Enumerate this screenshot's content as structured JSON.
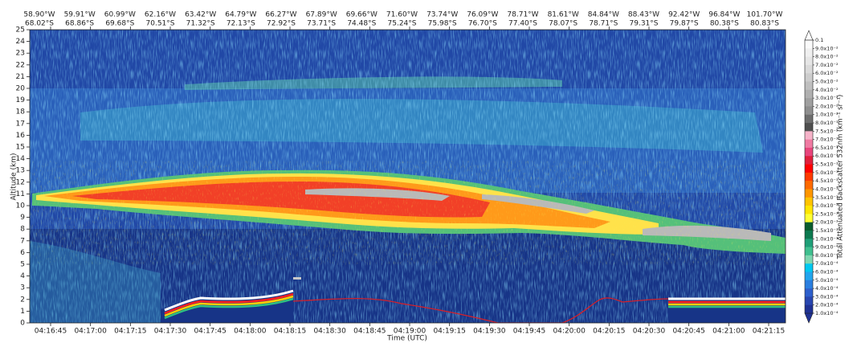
{
  "chart_data": {
    "type": "heatmap",
    "ylabel": "Altitude (km)",
    "xlabel": "Time (UTC)",
    "ylim": [
      0,
      25
    ],
    "yticks": [
      0,
      1,
      2,
      3,
      4,
      5,
      6,
      7,
      8,
      9,
      10,
      11,
      12,
      13,
      14,
      15,
      16,
      17,
      18,
      19,
      20,
      21,
      22,
      23,
      24,
      25
    ],
    "xticks": [
      "04:16:45",
      "04:17:00",
      "04:17:15",
      "04:17:30",
      "04:17:45",
      "04:18:00",
      "04:18:15",
      "04:18:30",
      "04:18:45",
      "04:19:00",
      "04:19:15",
      "04:19:30",
      "04:19:45",
      "04:20:00",
      "04:20:15",
      "04:20:30",
      "04:20:45",
      "04:21:00",
      "04:21:15"
    ],
    "top_labels": [
      {
        "lon": "58.90°W",
        "lat": "68.02°S"
      },
      {
        "lon": "59.91°W",
        "lat": "68.86°S"
      },
      {
        "lon": "60.99°W",
        "lat": "69.68°S"
      },
      {
        "lon": "62.16°W",
        "lat": "70.51°S"
      },
      {
        "lon": "63.42°W",
        "lat": "71.32°S"
      },
      {
        "lon": "64.79°W",
        "lat": "72.13°S"
      },
      {
        "lon": "66.27°W",
        "lat": "72.92°S"
      },
      {
        "lon": "67.89°W",
        "lat": "73.71°S"
      },
      {
        "lon": "69.66°W",
        "lat": "74.48°S"
      },
      {
        "lon": "71.60°W",
        "lat": "75.24°S"
      },
      {
        "lon": "73.74°W",
        "lat": "75.98°S"
      },
      {
        "lon": "76.09°W",
        "lat": "76.70°S"
      },
      {
        "lon": "78.71°W",
        "lat": "77.40°S"
      },
      {
        "lon": "81.61°W",
        "lat": "78.07°S"
      },
      {
        "lon": "84.84°W",
        "lat": "78.71°S"
      },
      {
        "lon": "88.43°W",
        "lat": "79.31°S"
      },
      {
        "lon": "92.42°W",
        "lat": "79.87°S"
      },
      {
        "lon": "96.84°W",
        "lat": "80.38°S"
      },
      {
        "lon": "101.70°W",
        "lat": "80.83°S"
      }
    ],
    "colorbar_label": "Total Attenuated Backscatter 532nm (km⁻¹ sr⁻¹)",
    "colorbar_ticks": [
      "0.1",
      "9.0x10⁻²",
      "8.0x10⁻²",
      "7.0x10⁻²",
      "6.0x10⁻²",
      "5.0x10⁻²",
      "4.0x10⁻²",
      "3.0x10⁻²",
      "2.0x10⁻²",
      "1.0x10⁻²",
      "8.0x10⁻³",
      "7.5x10⁻³",
      "7.0x10⁻³",
      "6.5x10⁻³",
      "6.0x10⁻³",
      "5.5x10⁻³",
      "5.0x10⁻³",
      "4.5x10⁻³",
      "4.0x10⁻³",
      "3.5x10⁻³",
      "3.0x10⁻³",
      "2.5x10⁻³",
      "2.0x10⁻³",
      "1.5x10⁻³",
      "1.0x10⁻³",
      "9.0x10⁻⁴",
      "8.0x10⁻⁴",
      "7.0x10⁻⁴",
      "6.0x10⁻⁴",
      "5.0x10⁻⁴",
      "4.0x10⁻⁴",
      "3.0x10⁻⁴",
      "2.0x10⁻⁴",
      "1.0x10⁻⁴"
    ],
    "colorbar_colors": [
      "#fafafa",
      "#f0f0f0",
      "#e6e6e6",
      "#dadada",
      "#cdcdcd",
      "#bfbfbf",
      "#b0b0b0",
      "#a0a0a0",
      "#8f8f8f",
      "#6e6e6e",
      "#4f4f4f",
      "#f6b3c9",
      "#f07aa2",
      "#e8457c",
      "#e01f3c",
      "#ff0000",
      "#ff3a00",
      "#ff6a00",
      "#ff9600",
      "#ffc400",
      "#ffe600",
      "#ffff33",
      "#0a5c2e",
      "#0d7a50",
      "#1f9f78",
      "#3fbf8f",
      "#7fd6b0",
      "#00c8f0",
      "#22a5ee",
      "#2b7fe0",
      "#2d5fcc",
      "#2846b0",
      "#1f3294"
    ]
  }
}
